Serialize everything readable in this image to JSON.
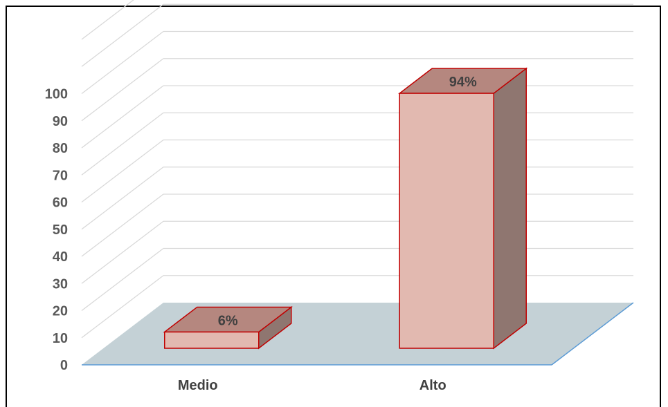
{
  "chart_data": {
    "type": "bar",
    "categories": [
      "Medio",
      "Alto"
    ],
    "values": [
      6,
      94
    ],
    "data_labels": [
      "6%",
      "94%"
    ],
    "yticks": [
      "0",
      "10",
      "20",
      "30",
      "40",
      "50",
      "60",
      "70",
      "80",
      "90",
      "100"
    ],
    "ylim": [
      0,
      120
    ],
    "grid": true,
    "style": "3d-column",
    "colors": {
      "bar_front": "#e2b9b0",
      "bar_top": "#b5877f",
      "bar_side": "#8f7670",
      "bar_outline": "#c00000",
      "floor": "#c4d1d6",
      "floor_edge": "#5b9bd5",
      "grid": "#d9d9d9"
    }
  }
}
